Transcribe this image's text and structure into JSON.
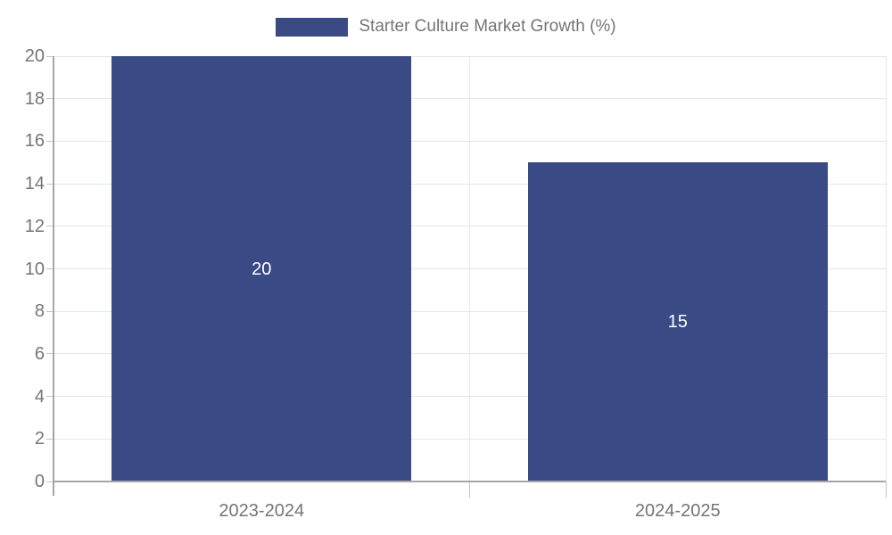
{
  "chart_data": {
    "type": "bar",
    "categories": [
      "2023-2024",
      "2024-2025"
    ],
    "values": [
      20,
      15
    ],
    "legend": "Starter Culture Market Growth (%)",
    "legend_position": "top-center",
    "title": "",
    "xlabel": "",
    "ylabel": "",
    "ylim": [
      0,
      20
    ],
    "ytick_step": 2,
    "grid": true,
    "colors": {
      "bar": "#394A84",
      "bar_value_text": "#FFFFFF",
      "axis_text": "#757575",
      "gridline": "#E6E6E6",
      "axis_line": "#A6A6A6",
      "tick": "#C4C4C4"
    }
  }
}
